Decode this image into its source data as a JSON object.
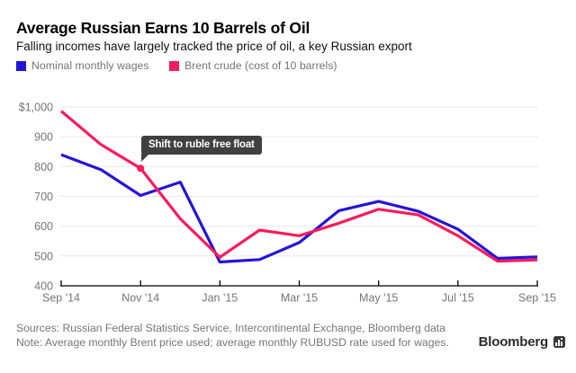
{
  "header": {
    "title": "Average Russian Earns 10 Barrels of Oil",
    "subtitle": "Falling incomes have largely tracked the price of oil, a key Russian export"
  },
  "chart_data": {
    "type": "line",
    "x": [
      "Sep '14",
      "Oct '14",
      "Nov '14",
      "Dec '14",
      "Jan '15",
      "Feb '15",
      "Mar '15",
      "Apr '15",
      "May '15",
      "Jun '15",
      "Jul '15",
      "Aug '15",
      "Sep '15"
    ],
    "series": [
      {
        "name": "Nominal monthly wages",
        "color": "#2414d6",
        "values": [
          840,
          790,
          703,
          748,
          480,
          488,
          545,
          652,
          683,
          650,
          590,
          492,
          497
        ]
      },
      {
        "name": "Brent crude (cost of 10 barrels)",
        "color": "#fa1a5d",
        "values": [
          986,
          874,
          794,
          625,
          496,
          587,
          568,
          610,
          657,
          638,
          568,
          483,
          487
        ]
      }
    ],
    "ylim": [
      400,
      1000
    ],
    "yticks": [
      {
        "value": 1000,
        "label": "$1,000"
      },
      {
        "value": 900,
        "label": "900"
      },
      {
        "value": 800,
        "label": "800"
      },
      {
        "value": 700,
        "label": "700"
      },
      {
        "value": 600,
        "label": "600"
      },
      {
        "value": 500,
        "label": "500"
      },
      {
        "value": 400,
        "label": "400"
      }
    ],
    "xticks": [
      {
        "index": 0,
        "label": "Sep '14"
      },
      {
        "index": 2,
        "label": "Nov '14"
      },
      {
        "index": 4,
        "label": "Jan '15"
      },
      {
        "index": 6,
        "label": "Mar '15"
      },
      {
        "index": 8,
        "label": "May '15"
      },
      {
        "index": 10,
        "label": "Jul '15"
      },
      {
        "index": 12,
        "label": "Sep '15"
      }
    ],
    "grid": "horizontal",
    "legend_position": "top-left",
    "annotation": {
      "text": "Shift to ruble free float",
      "series": 1,
      "index": 2,
      "value": 794
    },
    "colors": {
      "grid": "#e8e8ed",
      "axis": "#000000",
      "tick_label": "#757575"
    }
  },
  "footer": {
    "sources_line": "Sources: Russian Federal Statistics Service, Intercontinental Exchange, Bloomberg data",
    "note_line": "Note: Average monthly Brent price used; average monthly RUBUSD rate used for wages.",
    "brand": "Bloomberg"
  }
}
